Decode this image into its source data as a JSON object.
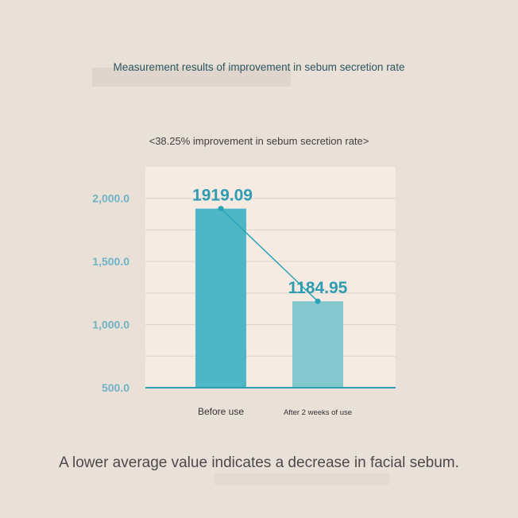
{
  "heading": "Measurement results of improvement in sebum secretion rate",
  "footer": "A lower average value indicates a decrease in facial sebum.",
  "colors": {
    "background": "#e9e0d8",
    "plot_background": "#f5ebe3",
    "bar_before": "#4fb6c6",
    "bar_after": "#84c7ce",
    "axis_text": "#6fb3c4",
    "value_text": "#2f9cb2",
    "connector": "#2aa3b8"
  },
  "chart_data": {
    "type": "bar",
    "title": "<38.25% improvement in sebum secretion rate>",
    "categories": [
      "Before use",
      "After 2 weeks of use"
    ],
    "values": [
      1919.09,
      1184.95
    ],
    "value_labels": [
      "1919.09",
      "1184.95"
    ],
    "ylim": [
      500,
      2250
    ],
    "yticks": [
      500,
      1000,
      1500,
      2000
    ],
    "ytick_labels": [
      "500.0",
      "1,000.0",
      "1,500.0",
      "2,000.0"
    ],
    "grid": true,
    "connector_line": true,
    "xlabel": "",
    "ylabel": ""
  }
}
